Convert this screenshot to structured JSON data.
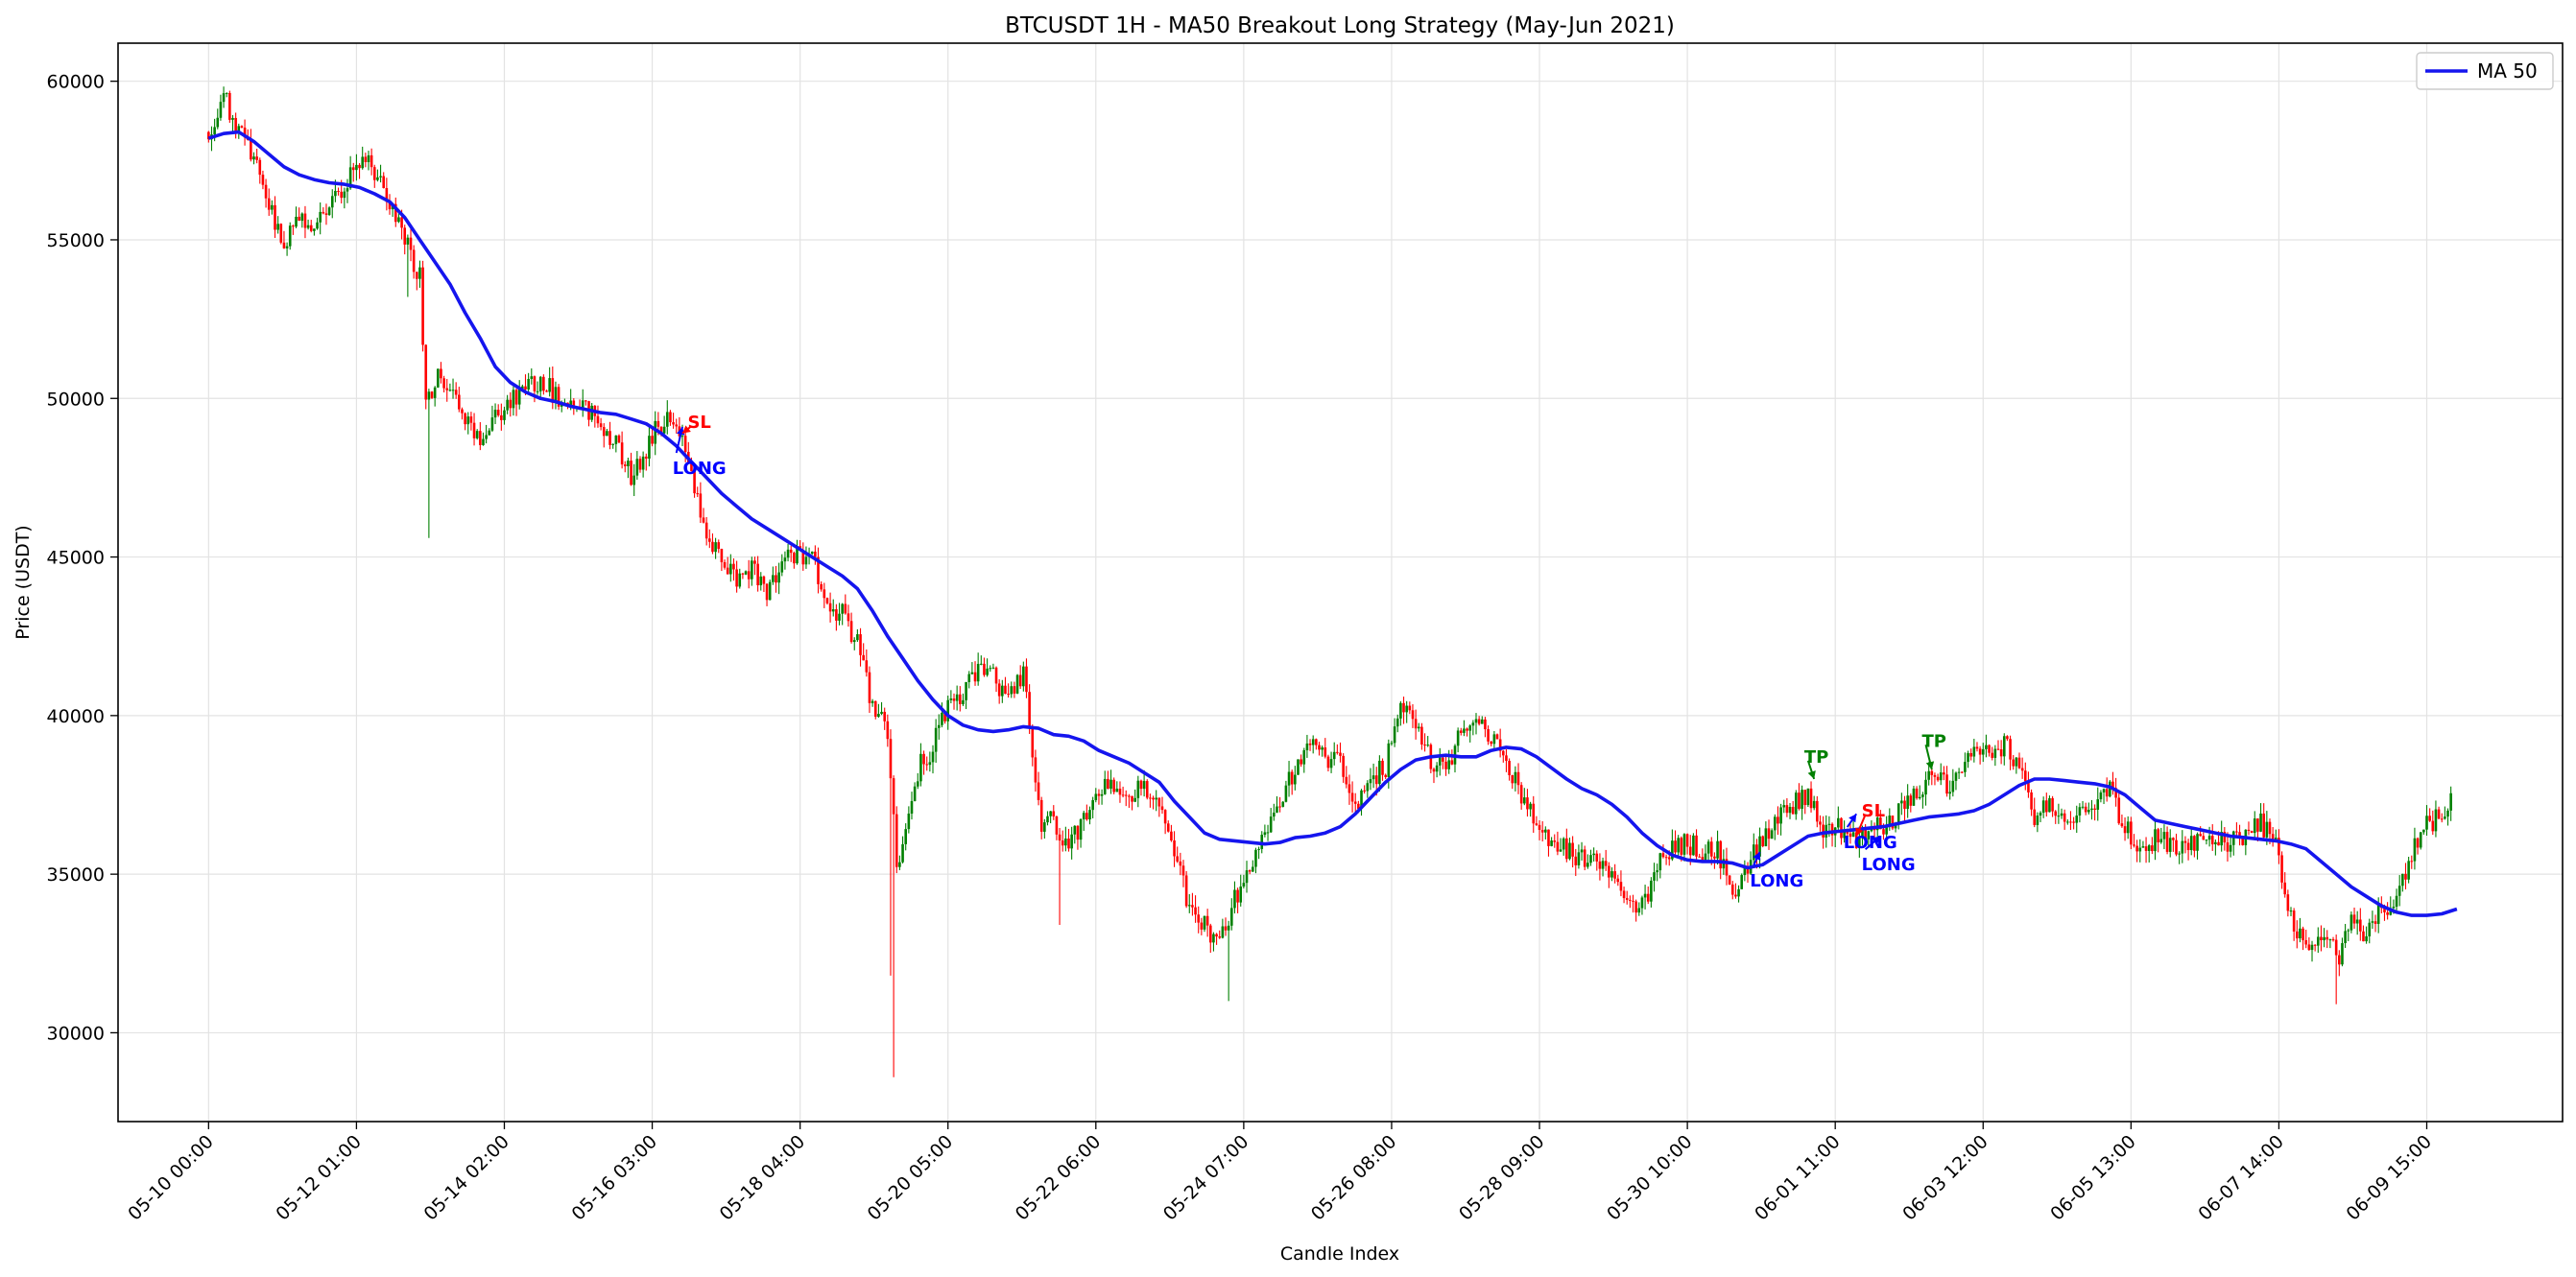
{
  "chart_data": {
    "type": "candlestick",
    "title": "BTCUSDT 1H - MA50 Breakout Long Strategy (May-Jun 2021)",
    "xlabel": "Candle Index",
    "ylabel": "Price (USDT)",
    "xlim": [
      -30,
      780
    ],
    "ylim": [
      27200,
      61200
    ],
    "grid": true,
    "legend": {
      "position": "top-right",
      "entries": [
        {
          "label": "MA 50",
          "color": "#0000ff"
        }
      ]
    },
    "colors": {
      "up": "#008000",
      "down": "#ff0000",
      "ma": "#1515ee",
      "long": "#0000ff",
      "sl": "#ff0000",
      "tp": "#008000"
    },
    "x_ticks": [
      {
        "index": 0,
        "label": "05-10 00:00"
      },
      {
        "index": 49,
        "label": "05-12 01:00"
      },
      {
        "index": 98,
        "label": "05-14 02:00"
      },
      {
        "index": 147,
        "label": "05-16 03:00"
      },
      {
        "index": 196,
        "label": "05-18 04:00"
      },
      {
        "index": 245,
        "label": "05-20 05:00"
      },
      {
        "index": 294,
        "label": "05-22 06:00"
      },
      {
        "index": 343,
        "label": "05-24 07:00"
      },
      {
        "index": 392,
        "label": "05-26 08:00"
      },
      {
        "index": 441,
        "label": "05-28 09:00"
      },
      {
        "index": 490,
        "label": "05-30 10:00"
      },
      {
        "index": 539,
        "label": "06-01 11:00"
      },
      {
        "index": 588,
        "label": "06-03 12:00"
      },
      {
        "index": 637,
        "label": "06-05 13:00"
      },
      {
        "index": 686,
        "label": "06-07 14:00"
      },
      {
        "index": 735,
        "label": "06-09 15:00"
      }
    ],
    "y_ticks": [
      30000,
      35000,
      40000,
      45000,
      50000,
      55000,
      60000
    ],
    "price_path": [
      [
        0,
        58400
      ],
      [
        5,
        59500
      ],
      [
        10,
        58400
      ],
      [
        15,
        57700
      ],
      [
        20,
        56000
      ],
      [
        25,
        54800
      ],
      [
        30,
        55600
      ],
      [
        35,
        55500
      ],
      [
        40,
        56200
      ],
      [
        45,
        56600
      ],
      [
        50,
        57600
      ],
      [
        55,
        57200
      ],
      [
        60,
        56200
      ],
      [
        65,
        55000
      ],
      [
        70,
        53800
      ],
      [
        72,
        49800
      ],
      [
        76,
        50700
      ],
      [
        80,
        50300
      ],
      [
        85,
        49500
      ],
      [
        90,
        48800
      ],
      [
        95,
        49300
      ],
      [
        100,
        49900
      ],
      [
        105,
        50200
      ],
      [
        110,
        50600
      ],
      [
        115,
        50100
      ],
      [
        120,
        49800
      ],
      [
        125,
        49600
      ],
      [
        130,
        49300
      ],
      [
        135,
        48500
      ],
      [
        140,
        47500
      ],
      [
        145,
        48400
      ],
      [
        148,
        49000
      ],
      [
        152,
        49400
      ],
      [
        156,
        49000
      ],
      [
        160,
        47500
      ],
      [
        165,
        45700
      ],
      [
        170,
        45000
      ],
      [
        175,
        44200
      ],
      [
        180,
        44700
      ],
      [
        185,
        43900
      ],
      [
        190,
        44900
      ],
      [
        195,
        45000
      ],
      [
        200,
        45200
      ],
      [
        205,
        43300
      ],
      [
        210,
        43200
      ],
      [
        215,
        42300
      ],
      [
        220,
        40300
      ],
      [
        225,
        39500
      ],
      [
        228,
        35200
      ],
      [
        232,
        36900
      ],
      [
        236,
        38500
      ],
      [
        240,
        39000
      ],
      [
        245,
        40300
      ],
      [
        250,
        40800
      ],
      [
        255,
        41500
      ],
      [
        260,
        41200
      ],
      [
        265,
        40600
      ],
      [
        270,
        41300
      ],
      [
        276,
        36600
      ],
      [
        280,
        36800
      ],
      [
        285,
        35800
      ],
      [
        290,
        36800
      ],
      [
        295,
        37600
      ],
      [
        300,
        37900
      ],
      [
        305,
        37500
      ],
      [
        310,
        37700
      ],
      [
        315,
        37000
      ],
      [
        320,
        35900
      ],
      [
        325,
        33900
      ],
      [
        330,
        33400
      ],
      [
        335,
        32800
      ],
      [
        340,
        34200
      ],
      [
        345,
        35100
      ],
      [
        350,
        36400
      ],
      [
        355,
        37200
      ],
      [
        360,
        38400
      ],
      [
        365,
        39000
      ],
      [
        370,
        38700
      ],
      [
        375,
        38600
      ],
      [
        380,
        37000
      ],
      [
        385,
        38000
      ],
      [
        390,
        38400
      ],
      [
        395,
        40300
      ],
      [
        400,
        39600
      ],
      [
        405,
        38600
      ],
      [
        410,
        38300
      ],
      [
        415,
        39500
      ],
      [
        420,
        39900
      ],
      [
        425,
        39200
      ],
      [
        430,
        38500
      ],
      [
        435,
        37500
      ],
      [
        440,
        36600
      ],
      [
        445,
        36100
      ],
      [
        450,
        35700
      ],
      [
        455,
        35500
      ],
      [
        460,
        35300
      ],
      [
        465,
        34800
      ],
      [
        470,
        34200
      ],
      [
        475,
        34000
      ],
      [
        480,
        35200
      ],
      [
        485,
        35800
      ],
      [
        490,
        36000
      ],
      [
        495,
        35700
      ],
      [
        500,
        35800
      ],
      [
        505,
        34400
      ],
      [
        510,
        35300
      ],
      [
        515,
        36200
      ],
      [
        520,
        36800
      ],
      [
        525,
        37200
      ],
      [
        530,
        37400
      ],
      [
        535,
        36300
      ],
      [
        540,
        36500
      ],
      [
        545,
        36000
      ],
      [
        550,
        36500
      ],
      [
        555,
        36400
      ],
      [
        560,
        36900
      ],
      [
        565,
        37400
      ],
      [
        570,
        38100
      ],
      [
        575,
        37800
      ],
      [
        580,
        38000
      ],
      [
        585,
        38800
      ],
      [
        590,
        38900
      ],
      [
        595,
        39100
      ],
      [
        600,
        38200
      ],
      [
        605,
        36800
      ],
      [
        610,
        37200
      ],
      [
        615,
        36800
      ],
      [
        620,
        37000
      ],
      [
        625,
        37300
      ],
      [
        630,
        37600
      ],
      [
        635,
        36500
      ],
      [
        640,
        35600
      ],
      [
        645,
        36100
      ],
      [
        650,
        36000
      ],
      [
        655,
        35700
      ],
      [
        660,
        36100
      ],
      [
        665,
        36200
      ],
      [
        670,
        36000
      ],
      [
        675,
        36300
      ],
      [
        680,
        36600
      ],
      [
        685,
        36000
      ],
      [
        688,
        34200
      ],
      [
        692,
        33300
      ],
      [
        697,
        32700
      ],
      [
        702,
        33000
      ],
      [
        706,
        32300
      ],
      [
        710,
        33600
      ],
      [
        715,
        33000
      ],
      [
        720,
        33900
      ],
      [
        725,
        34300
      ],
      [
        730,
        35700
      ],
      [
        735,
        36500
      ],
      [
        740,
        37000
      ],
      [
        743,
        37400
      ]
    ],
    "ma50": [
      [
        0,
        58200
      ],
      [
        5,
        58350
      ],
      [
        10,
        58400
      ],
      [
        15,
        58100
      ],
      [
        20,
        57700
      ],
      [
        25,
        57300
      ],
      [
        30,
        57050
      ],
      [
        35,
        56900
      ],
      [
        40,
        56800
      ],
      [
        45,
        56750
      ],
      [
        50,
        56650
      ],
      [
        55,
        56450
      ],
      [
        60,
        56200
      ],
      [
        65,
        55700
      ],
      [
        70,
        55000
      ],
      [
        75,
        54300
      ],
      [
        80,
        53600
      ],
      [
        85,
        52700
      ],
      [
        90,
        51900
      ],
      [
        95,
        51000
      ],
      [
        100,
        50500
      ],
      [
        105,
        50200
      ],
      [
        110,
        50000
      ],
      [
        115,
        49900
      ],
      [
        120,
        49750
      ],
      [
        125,
        49650
      ],
      [
        130,
        49550
      ],
      [
        135,
        49500
      ],
      [
        140,
        49350
      ],
      [
        145,
        49200
      ],
      [
        150,
        48900
      ],
      [
        155,
        48500
      ],
      [
        160,
        48000
      ],
      [
        165,
        47500
      ],
      [
        170,
        47000
      ],
      [
        175,
        46600
      ],
      [
        180,
        46200
      ],
      [
        185,
        45900
      ],
      [
        190,
        45600
      ],
      [
        195,
        45300
      ],
      [
        200,
        45000
      ],
      [
        205,
        44700
      ],
      [
        210,
        44400
      ],
      [
        215,
        44000
      ],
      [
        220,
        43300
      ],
      [
        225,
        42500
      ],
      [
        230,
        41800
      ],
      [
        235,
        41100
      ],
      [
        240,
        40500
      ],
      [
        245,
        40000
      ],
      [
        250,
        39700
      ],
      [
        255,
        39550
      ],
      [
        260,
        39500
      ],
      [
        265,
        39550
      ],
      [
        270,
        39650
      ],
      [
        275,
        39600
      ],
      [
        280,
        39400
      ],
      [
        285,
        39350
      ],
      [
        290,
        39200
      ],
      [
        295,
        38900
      ],
      [
        300,
        38700
      ],
      [
        305,
        38500
      ],
      [
        310,
        38200
      ],
      [
        315,
        37900
      ],
      [
        320,
        37300
      ],
      [
        325,
        36800
      ],
      [
        330,
        36300
      ],
      [
        335,
        36100
      ],
      [
        340,
        36050
      ],
      [
        345,
        36000
      ],
      [
        350,
        35950
      ],
      [
        355,
        36000
      ],
      [
        360,
        36150
      ],
      [
        365,
        36200
      ],
      [
        370,
        36300
      ],
      [
        375,
        36500
      ],
      [
        380,
        36900
      ],
      [
        385,
        37400
      ],
      [
        390,
        37900
      ],
      [
        395,
        38300
      ],
      [
        400,
        38600
      ],
      [
        405,
        38700
      ],
      [
        410,
        38750
      ],
      [
        415,
        38700
      ],
      [
        420,
        38700
      ],
      [
        425,
        38900
      ],
      [
        430,
        39000
      ],
      [
        435,
        38950
      ],
      [
        440,
        38700
      ],
      [
        445,
        38350
      ],
      [
        450,
        38000
      ],
      [
        455,
        37700
      ],
      [
        460,
        37500
      ],
      [
        465,
        37200
      ],
      [
        470,
        36800
      ],
      [
        475,
        36300
      ],
      [
        480,
        35900
      ],
      [
        485,
        35600
      ],
      [
        490,
        35450
      ],
      [
        495,
        35400
      ],
      [
        500,
        35400
      ],
      [
        505,
        35350
      ],
      [
        510,
        35200
      ],
      [
        515,
        35300
      ],
      [
        520,
        35600
      ],
      [
        525,
        35900
      ],
      [
        530,
        36200
      ],
      [
        535,
        36300
      ],
      [
        540,
        36350
      ],
      [
        545,
        36400
      ],
      [
        550,
        36450
      ],
      [
        555,
        36500
      ],
      [
        560,
        36600
      ],
      [
        565,
        36700
      ],
      [
        570,
        36800
      ],
      [
        575,
        36850
      ],
      [
        580,
        36900
      ],
      [
        585,
        37000
      ],
      [
        590,
        37200
      ],
      [
        595,
        37500
      ],
      [
        600,
        37800
      ],
      [
        605,
        38000
      ],
      [
        610,
        38000
      ],
      [
        615,
        37950
      ],
      [
        620,
        37900
      ],
      [
        625,
        37850
      ],
      [
        630,
        37750
      ],
      [
        635,
        37500
      ],
      [
        640,
        37100
      ],
      [
        645,
        36700
      ],
      [
        650,
        36600
      ],
      [
        655,
        36500
      ],
      [
        660,
        36400
      ],
      [
        665,
        36300
      ],
      [
        670,
        36200
      ],
      [
        675,
        36150
      ],
      [
        680,
        36100
      ],
      [
        685,
        36050
      ],
      [
        690,
        35950
      ],
      [
        695,
        35800
      ],
      [
        700,
        35400
      ],
      [
        705,
        35000
      ],
      [
        710,
        34600
      ],
      [
        715,
        34300
      ],
      [
        720,
        34000
      ],
      [
        725,
        33800
      ],
      [
        730,
        33700
      ],
      [
        735,
        33700
      ],
      [
        740,
        33750
      ],
      [
        745,
        33900
      ]
    ],
    "annotations": [
      {
        "type": "long",
        "label": "LONG",
        "index": 157,
        "price": 49100,
        "text_index": 155,
        "text_price": 47800
      },
      {
        "type": "sl",
        "label": "SL",
        "index": 157,
        "price": 48900,
        "text_index": 160,
        "text_price": 49250
      },
      {
        "type": "long",
        "label": "LONG",
        "index": 514,
        "price": 35700,
        "text_index": 512,
        "text_price": 34800
      },
      {
        "type": "tp",
        "label": "TP",
        "index": 532,
        "price": 38000,
        "text_index": 530,
        "text_price": 38700
      },
      {
        "type": "long",
        "label": "LONG",
        "index": 546,
        "price": 36900,
        "text_index": 543,
        "text_price": 36000
      },
      {
        "type": "sl",
        "label": "SL",
        "index": 546,
        "price": 36200,
        "text_index": 549,
        "text_price": 37000
      },
      {
        "type": "long",
        "label": "LONG",
        "index": 554,
        "price": 36200,
        "text_index": 549,
        "text_price": 35300
      },
      {
        "type": "tp",
        "label": "TP",
        "index": 571,
        "price": 38300,
        "text_index": 569,
        "text_price": 39200
      }
    ]
  }
}
